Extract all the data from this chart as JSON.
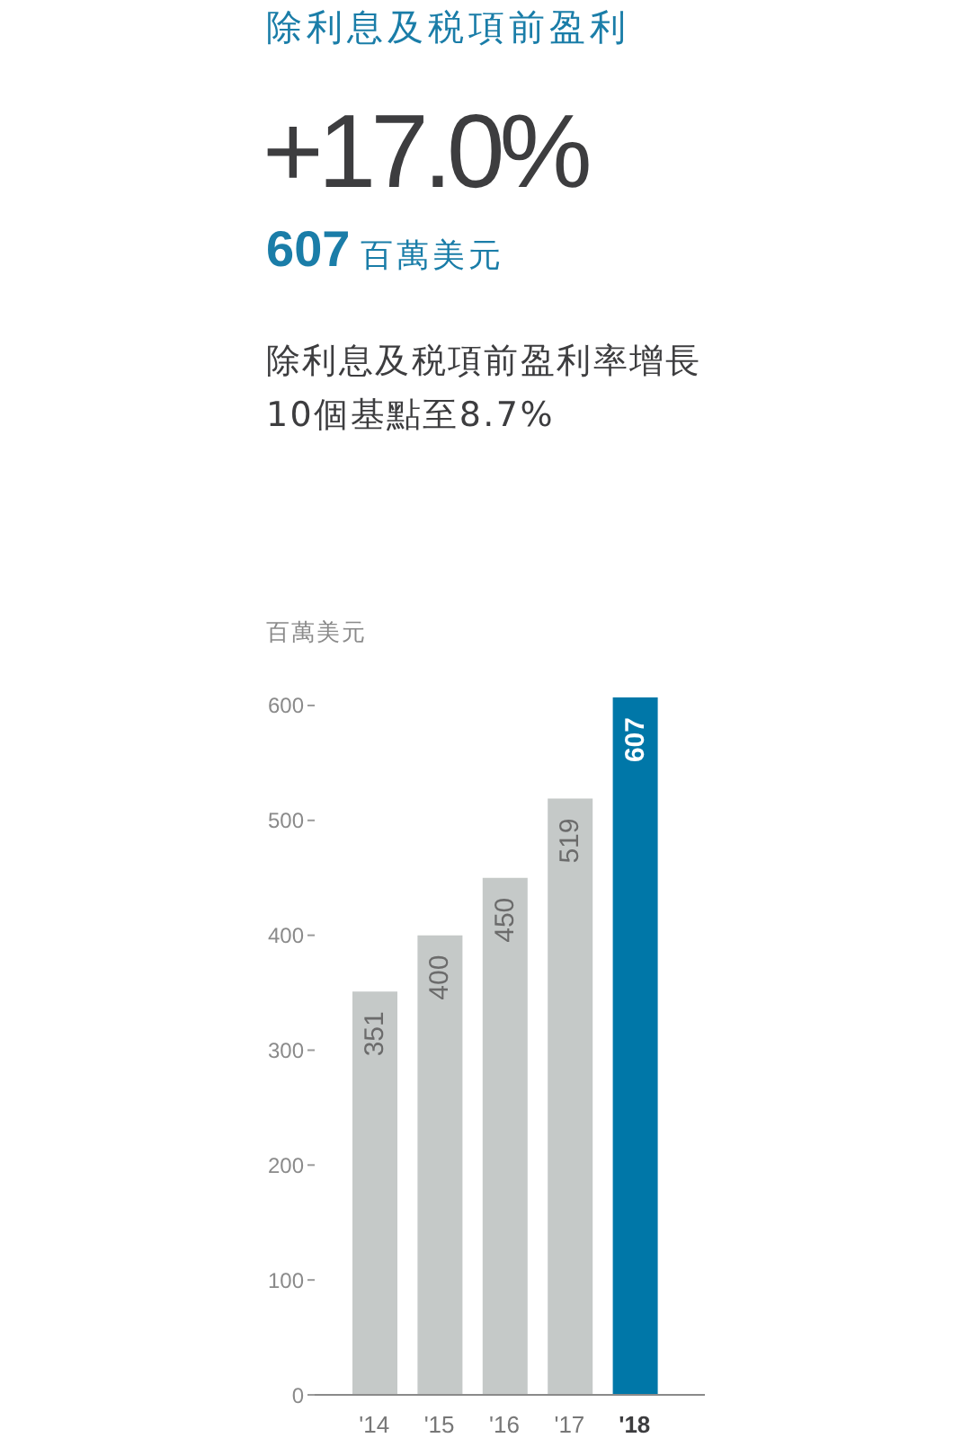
{
  "chart_data": {
    "type": "bar",
    "title": "除利息及税項前盈利",
    "subtitle": "除利息及税項前盈利率增長\n10個基點至8.7%",
    "annotations": [
      "+17.0%",
      "607 百萬美元"
    ],
    "ylabel": "百萬美元",
    "categories": [
      "'14",
      "'15",
      "'16",
      "'17",
      "'18"
    ],
    "values": [
      351,
      400,
      450,
      519,
      607
    ],
    "colors": [
      "#c5c9c8",
      "#c5c9c8",
      "#c5c9c8",
      "#c5c9c8",
      "#0077a8"
    ],
    "ylim": [
      0,
      607
    ],
    "yticks": [
      0,
      100,
      200,
      300,
      400,
      500,
      600
    ],
    "data_labels": true
  }
}
